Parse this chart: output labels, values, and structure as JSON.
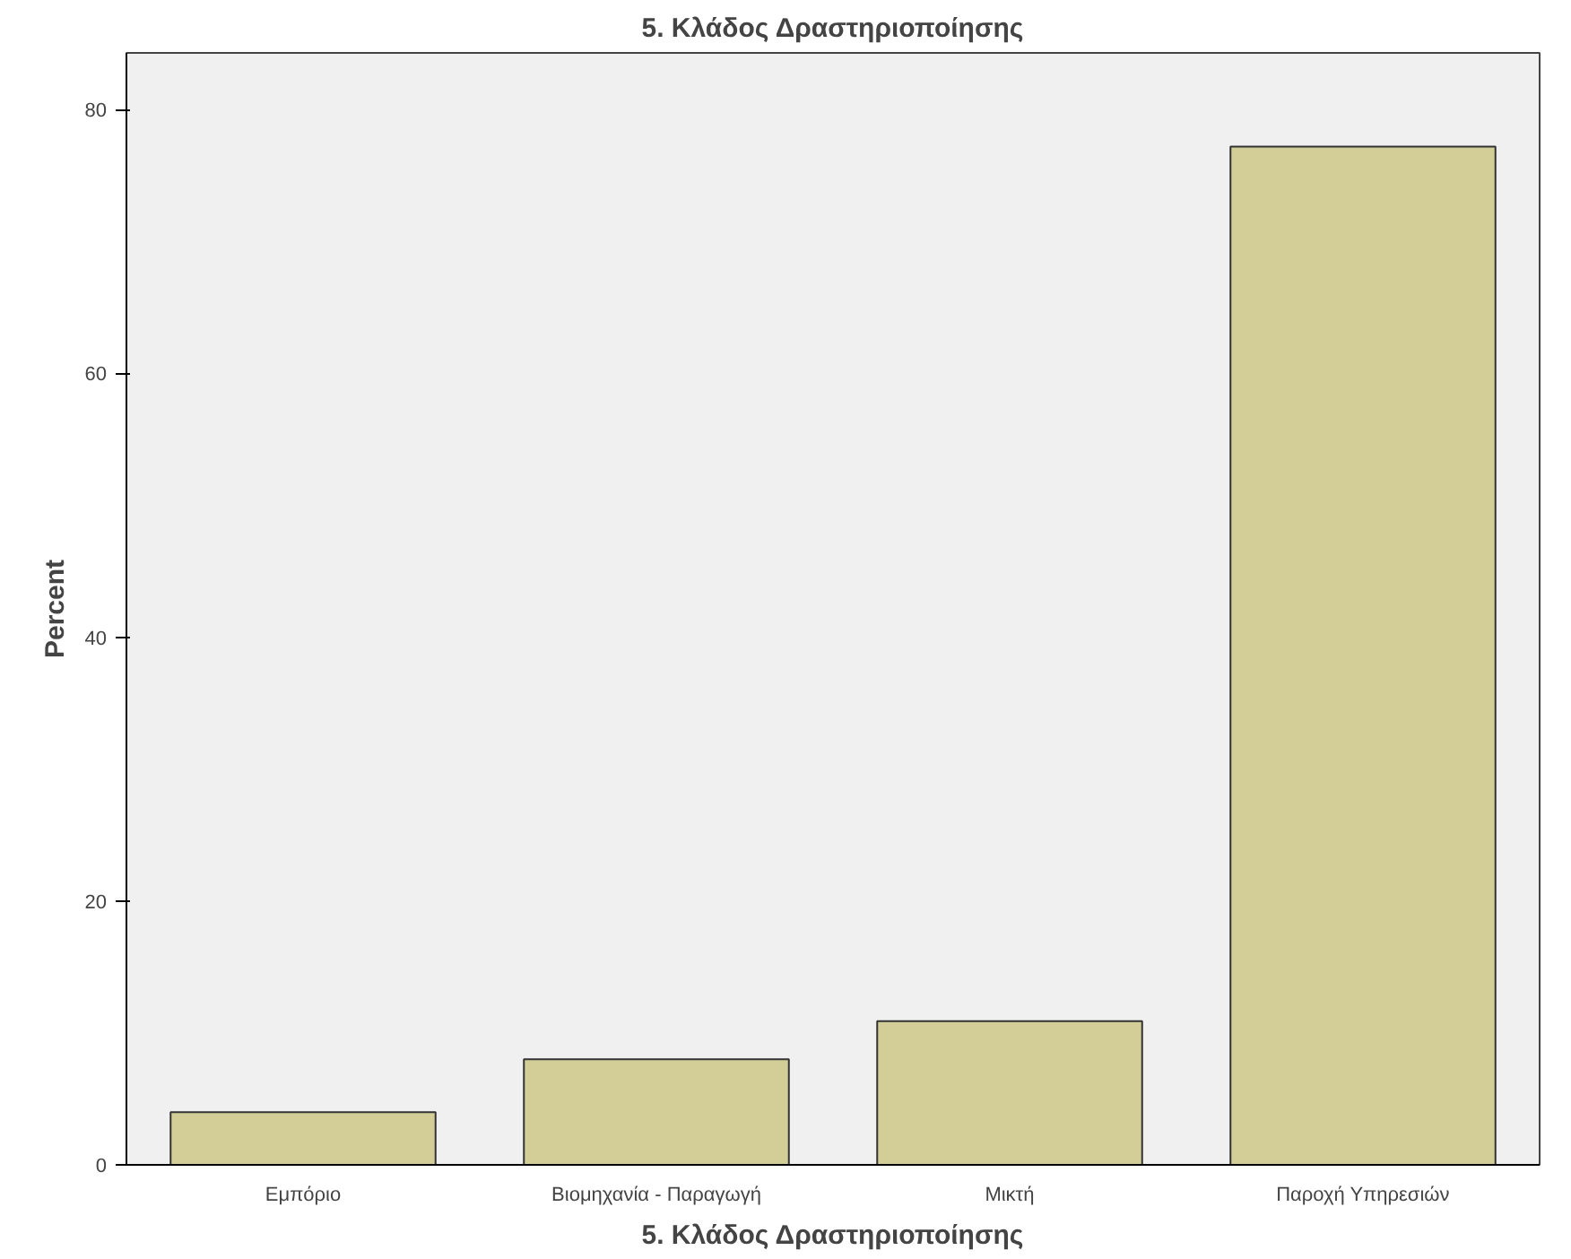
{
  "chart_data": {
    "type": "bar",
    "title": "5. Κλάδος Δραστηριοποίησης",
    "xlabel": "5. Κλάδος Δραστηριοποίησης",
    "ylabel": "Percent",
    "categories": [
      "Εμπόριο",
      "Βιομηχανία - Παραγωγή",
      "Μικτή",
      "Παροχή Υπηρεσιών"
    ],
    "values": [
      4.0,
      8.0,
      10.9,
      77.2
    ],
    "color": "#d3ce97",
    "ylim": [
      0,
      84.3
    ],
    "yticks": [
      0,
      20,
      40,
      60,
      80
    ],
    "grid": false
  }
}
